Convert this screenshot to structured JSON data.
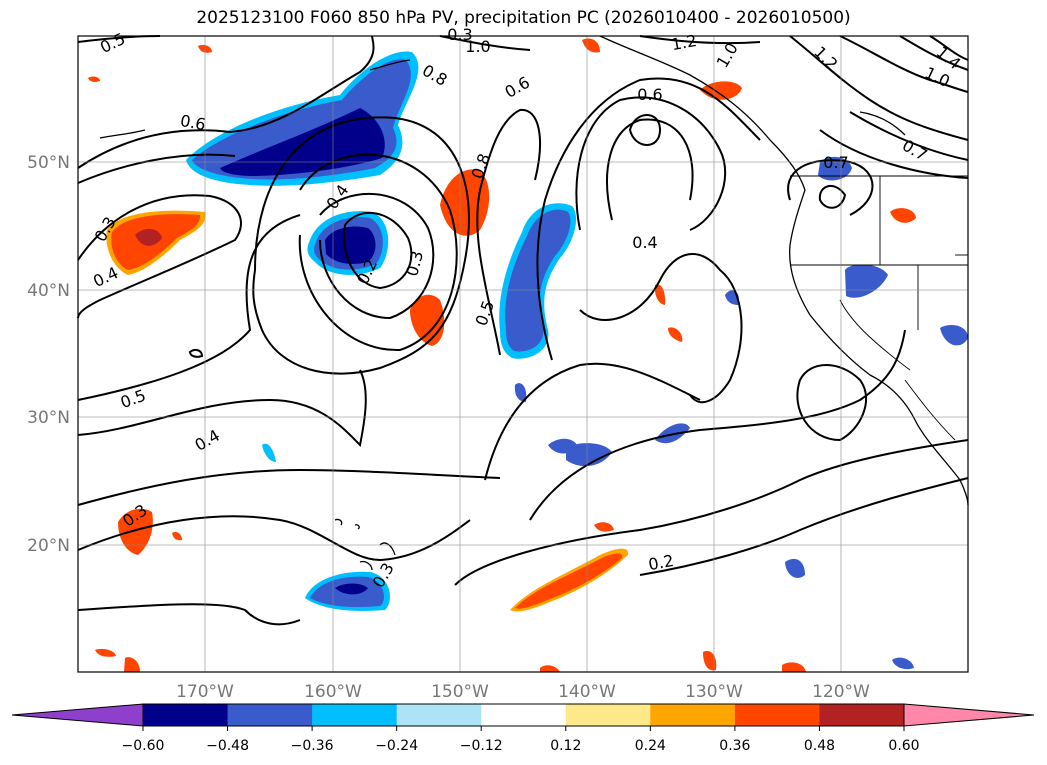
{
  "title": "2025123100 F060 850 hPa PV, precipitation PC (2026010400 - 2026010500)",
  "axes": {
    "lon_labels": [
      "170°W",
      "160°W",
      "150°W",
      "140°W",
      "130°W",
      "120°W"
    ],
    "lat_labels": [
      "50°N",
      "40°N",
      "30°N",
      "20°N"
    ]
  },
  "contour_labels": [
    "0.5",
    "1.0",
    "1.2",
    "1.0",
    "1.2",
    "1.4",
    "1.0",
    "0.7",
    "0.8",
    "0.6",
    "0.6",
    "0.8",
    "0.4",
    "0.3",
    "0.2",
    "0.3",
    "0.4",
    "0.6",
    "0.5",
    "0.7",
    "0.3",
    "0.4",
    "0.5",
    "0.4",
    "0.3",
    "0.3",
    "0.2"
  ],
  "colorbar": {
    "ticks": [
      "−0.60",
      "−0.48",
      "−0.36",
      "−0.24",
      "−0.12",
      "0.12",
      "0.24",
      "0.36",
      "0.48",
      "0.60"
    ],
    "colors": [
      "#8e3fcc",
      "#00008b",
      "#3a5bcc",
      "#00bfff",
      "#ade3f7",
      "#ffffff",
      "#ffe88a",
      "#ffa500",
      "#ff4500",
      "#b22222",
      "#ff88aa"
    ]
  },
  "palette": {
    "neg_deep": "#00008b",
    "neg_mid": "#3a5bcc",
    "neg_light": "#00bfff",
    "pos_orange": "#ff4500",
    "pos_amber": "#ffa500",
    "pos_dark": "#b22222"
  }
}
